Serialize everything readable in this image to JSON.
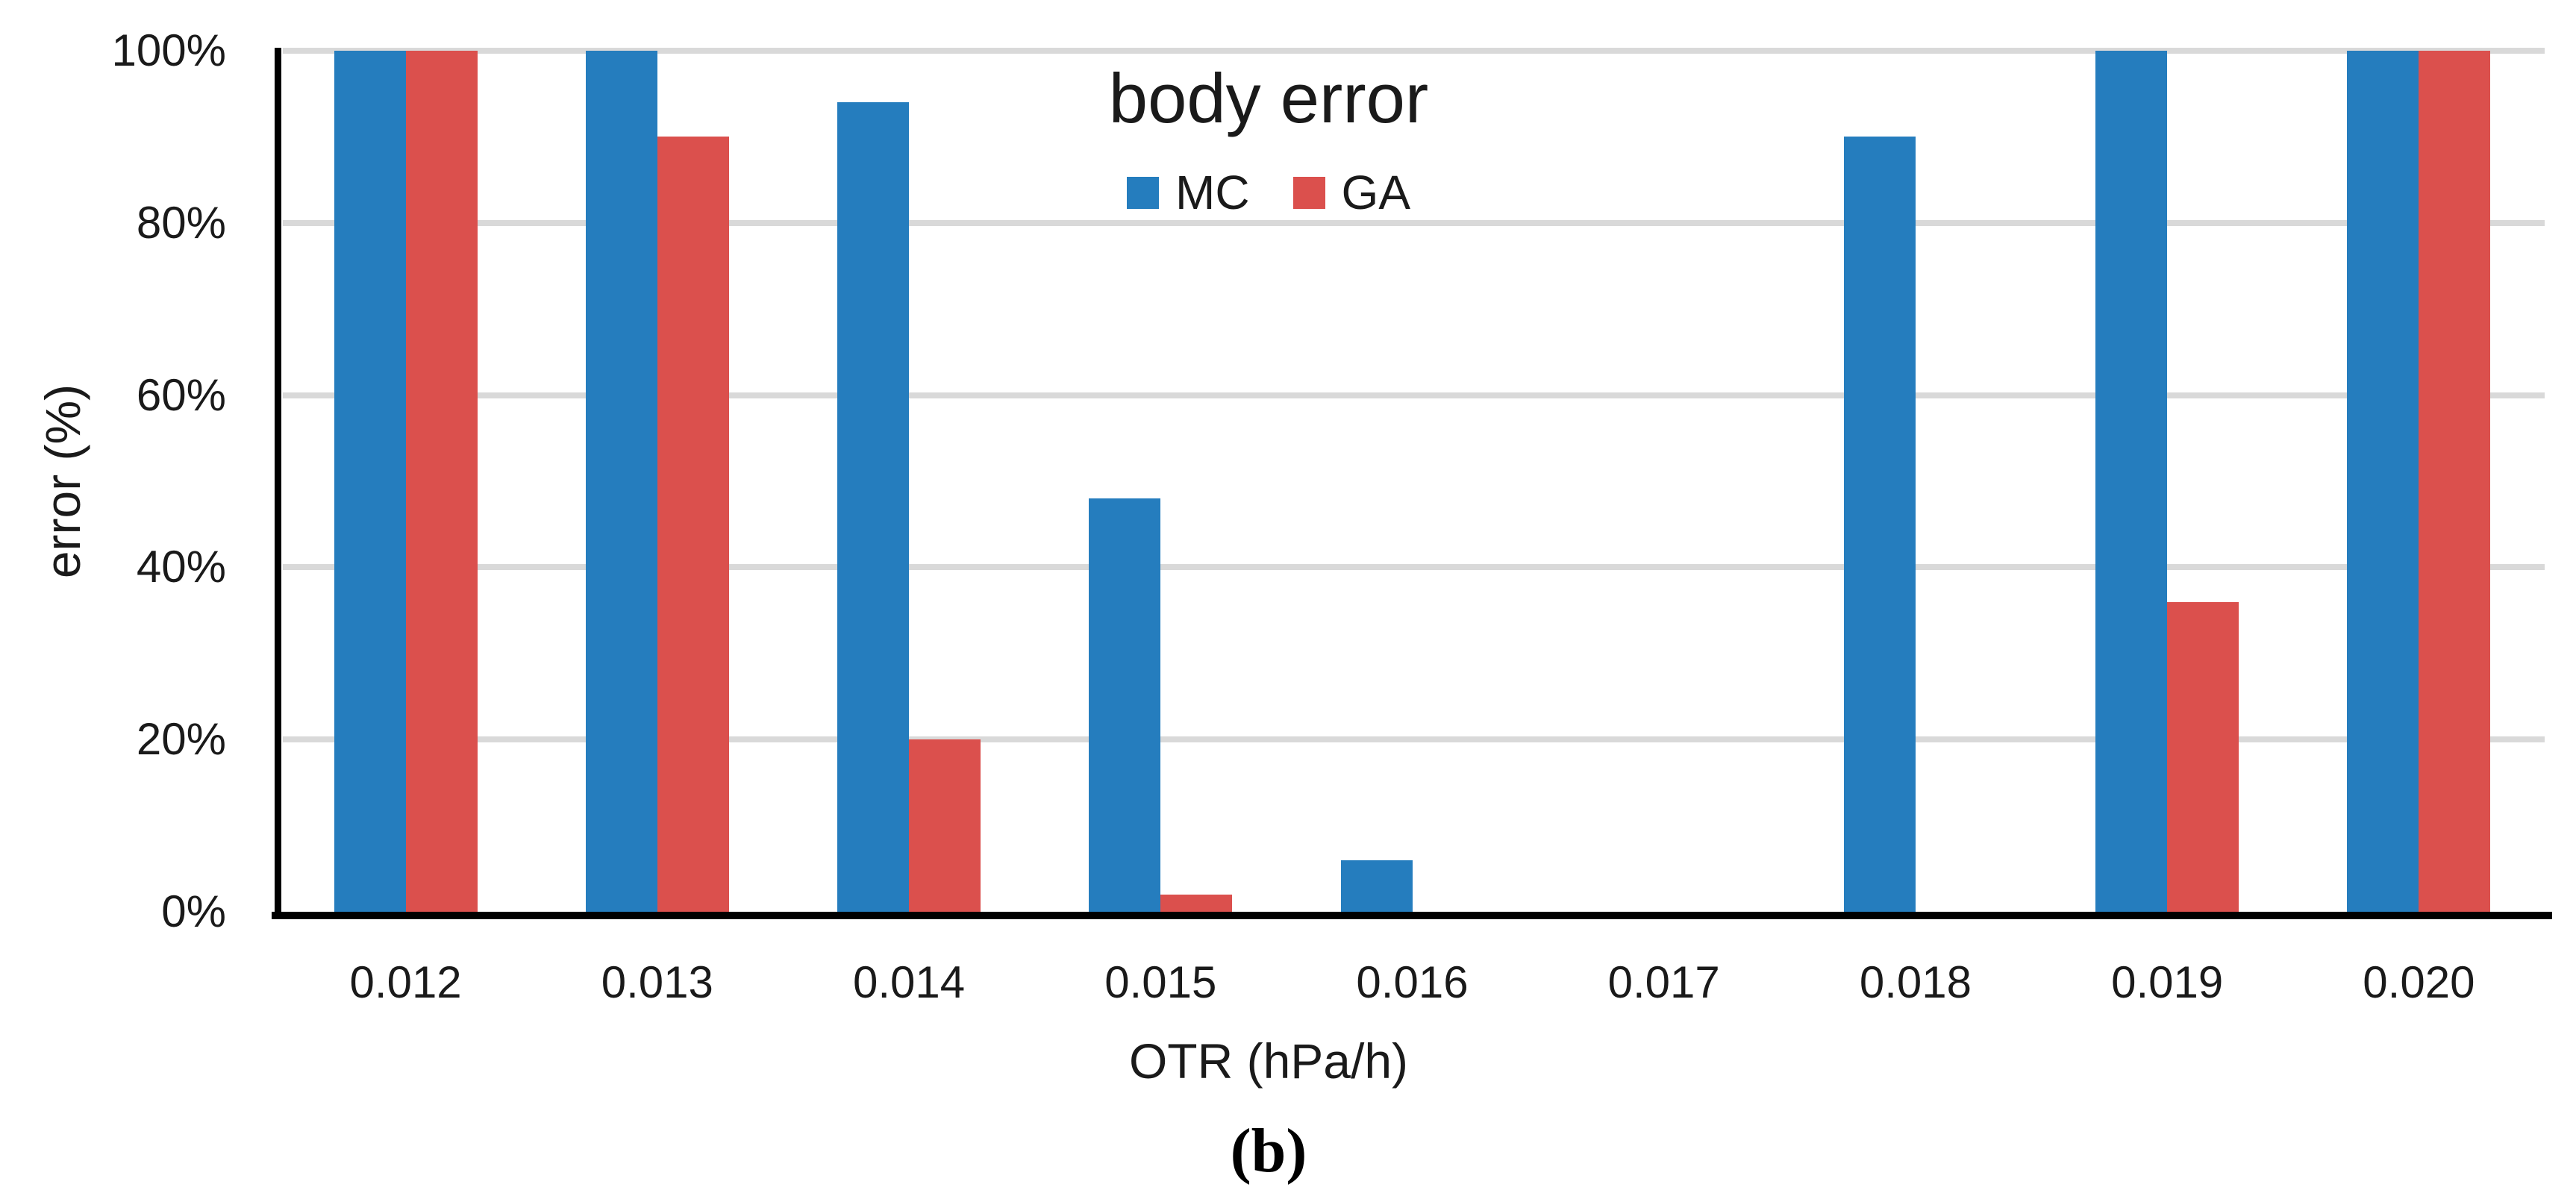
{
  "figure": {
    "caption": "(b)"
  },
  "chart_data": {
    "type": "bar",
    "title": "body error",
    "categories": [
      "0.012",
      "0.013",
      "0.014",
      "0.015",
      "0.016",
      "0.017",
      "0.018",
      "0.019",
      "0.020"
    ],
    "series": [
      {
        "name": "MC",
        "color": "#257DBE",
        "values": [
          100,
          100,
          94,
          48,
          6,
          0,
          90,
          100,
          100
        ]
      },
      {
        "name": "GA",
        "color": "#DB504D",
        "values": [
          100,
          90,
          20,
          2,
          0,
          0,
          0,
          36,
          100
        ]
      }
    ],
    "xlabel": "OTR (hPa/h)",
    "ylabel": "error (%)",
    "y_ticks": [
      "0%",
      "20%",
      "40%",
      "60%",
      "80%",
      "100%"
    ],
    "ylim": [
      0,
      100
    ],
    "y_unit": "percent",
    "grid": true,
    "gridline_color": "#D9D9D9",
    "axis_color": "#000000",
    "legend_position": "top-center"
  }
}
